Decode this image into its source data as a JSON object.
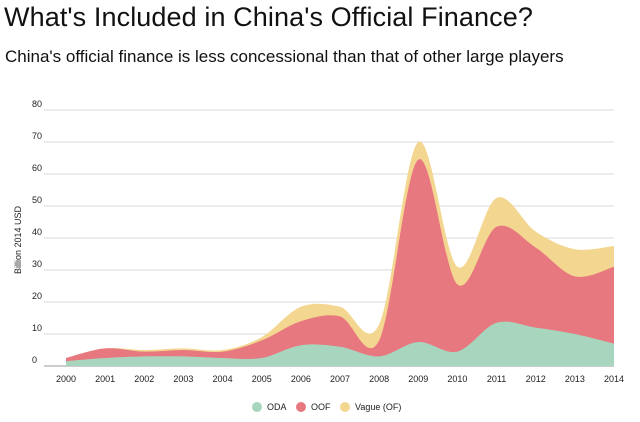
{
  "chart_data": {
    "type": "area",
    "stacked": true,
    "title": "What's Included in China's Official Finance?",
    "subtitle": "China's official finance is less concessional than that of other large players",
    "xlabel": "",
    "ylabel": "Billion 2014 USD",
    "x": [
      "2000",
      "2001",
      "2002",
      "2003",
      "2004",
      "2005",
      "2006",
      "2007",
      "2008",
      "2009",
      "2010",
      "2011",
      "2012",
      "2013",
      "2014"
    ],
    "ylim": [
      0,
      80
    ],
    "yticks": [
      0,
      10,
      20,
      30,
      40,
      50,
      60,
      70,
      80
    ],
    "grid": true,
    "legend_position": "bottom",
    "series": [
      {
        "name": "ODA",
        "color": "#a8d5bd",
        "values": [
          1.5,
          2.5,
          3,
          3,
          2.5,
          2.5,
          6.5,
          6,
          3,
          7.5,
          4.5,
          13.5,
          12,
          10,
          7
        ]
      },
      {
        "name": "OOF",
        "color": "#e8787f",
        "values": [
          1,
          3,
          1.5,
          2,
          2,
          5.5,
          7.5,
          9.5,
          5,
          57,
          21,
          30,
          25,
          18,
          24
        ]
      },
      {
        "name": "Vague (OF)",
        "color": "#f3d68f",
        "values": [
          0,
          0,
          0.5,
          0.5,
          0.5,
          1,
          4.5,
          3,
          5,
          5.5,
          5.5,
          9,
          5,
          8.5,
          6.5
        ]
      }
    ]
  }
}
